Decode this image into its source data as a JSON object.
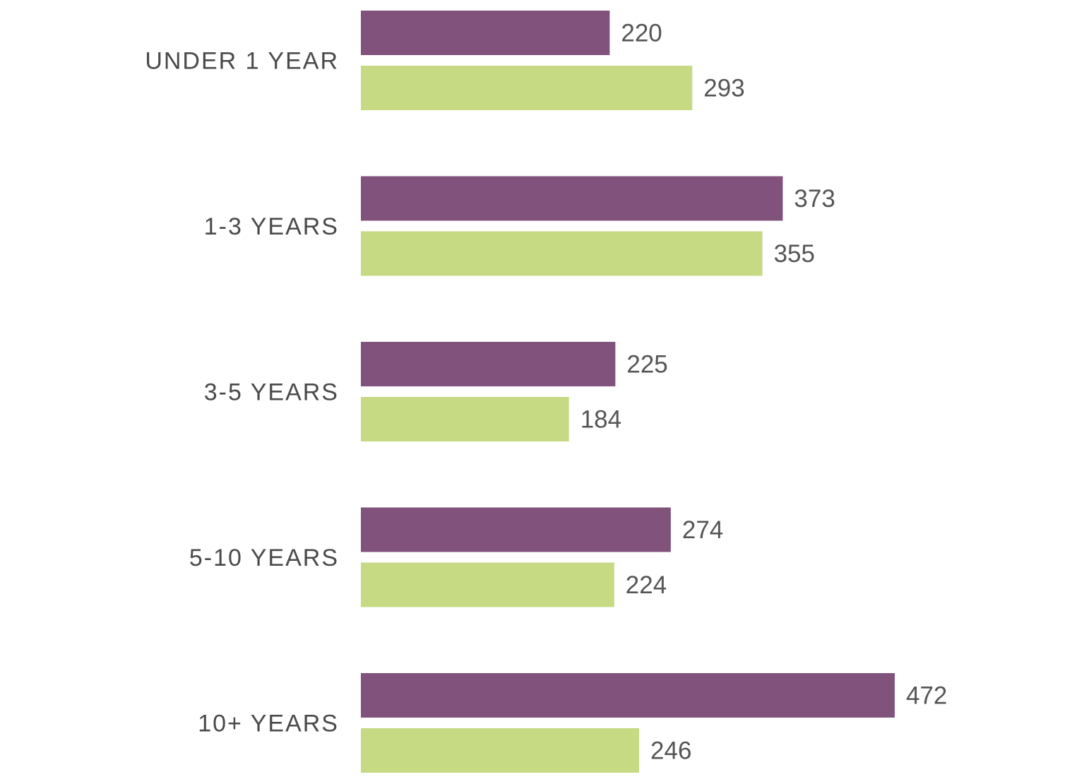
{
  "chart_data": {
    "type": "bar",
    "orientation": "horizontal",
    "categories": [
      "UNDER 1 YEAR",
      "1-3 YEARS",
      "3-5 YEARS",
      "5-10 YEARS",
      "10+ YEARS"
    ],
    "series": [
      {
        "values": [
          220,
          373,
          225,
          274,
          472
        ],
        "color": "#80527c"
      },
      {
        "values": [
          293,
          355,
          184,
          224,
          246
        ],
        "color": "#c6da84"
      }
    ],
    "title": "",
    "xlabel": "",
    "ylabel": "",
    "xlim": [
      0,
      500
    ],
    "grid": false,
    "legend": "none",
    "data_labels": true
  }
}
